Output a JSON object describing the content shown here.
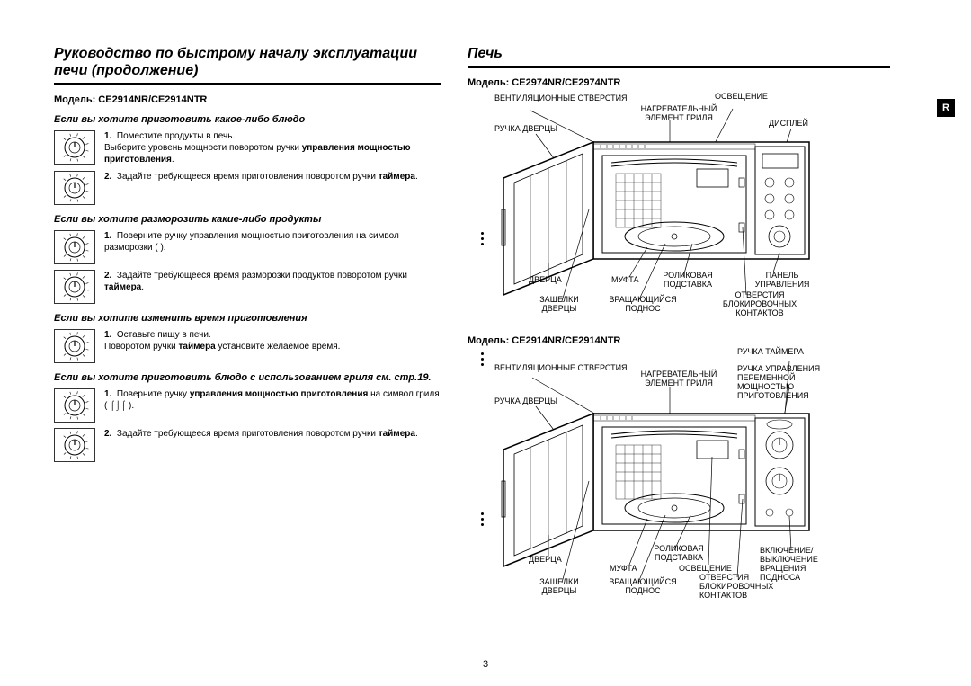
{
  "page_number": "3",
  "r_tab": "R",
  "left": {
    "heading": "Руководство по быстрому началу эксплуатации печи (продолжение)",
    "model": "Модель: CE2914NR/CE2914NTR",
    "sections": [
      {
        "title": "Если вы хотите приготовить какое-либо блюдо",
        "steps": [
          {
            "n": "1.",
            "text_before": "Поместите продукты в печь.\nВыберите уровень мощности поворотом ручки ",
            "bold": "управления мощностью приготовления",
            "text_after": "."
          },
          {
            "n": "2.",
            "text_before": "Задайте требующееся время приготовления поворотом ручки ",
            "bold": "таймера",
            "text_after": "."
          }
        ]
      },
      {
        "title": "Если вы хотите разморозить какие-либо продукты",
        "steps": [
          {
            "n": "1.",
            "text_before": "Поверните ручку управления мощностью приготовления на символ разморозки ( ",
            "bold": "",
            "text_after": " )."
          },
          {
            "n": "2.",
            "text_before": "Задайте требующееся время разморозки продуктов поворотом ручки ",
            "bold": "таймера",
            "text_after": "."
          }
        ]
      },
      {
        "title": "Если вы хотите изменить время приготовления",
        "steps": [
          {
            "n": "1.",
            "text_before": "Оставьте пищу в печи.\nПоворотом ручки ",
            "bold": "таймера",
            "text_after": " установите желаемое время."
          }
        ]
      },
      {
        "title": "Если вы хотите приготовить блюдо с использованием гриля см. стр.19.",
        "steps": [
          {
            "n": "1.",
            "text_before": "Поверните ручку ",
            "bold": "управления мощностью приготовления",
            "text_after": " на символ гриля ( ⌠⌡⌠ )."
          },
          {
            "n": "2.",
            "text_before": "Задайте требующееся время приготовления поворотом ручки ",
            "bold": "таймера",
            "text_after": "."
          }
        ]
      }
    ]
  },
  "right": {
    "heading": "Печь",
    "model1": "Модель: CE2974NR/CE2974NTR",
    "model2": "Модель: CE2914NR/CE2914NTR",
    "labels1": {
      "vent": "ВЕНТИЛЯЦИОННЫЕ ОТВЕРСТИЯ",
      "handle": "РУЧКА ДВЕРЦЫ",
      "light": "ОСВЕЩЕНИЕ",
      "grill": "НАГРЕВАТЕЛЬНЫЙ ЭЛЕМЕНТ ГРИЛЯ",
      "display": "ДИСПЛЕЙ",
      "door": "ДВЕРЦА",
      "coupler": "МУФТА",
      "roller": "РОЛИКОВАЯ ПОДСТАВКА",
      "panel": "ПАНЕЛЬ УПРАВЛЕНИЯ",
      "latches": "ЗАЩЕЛКИ ДВЕРЦЫ",
      "turntable": "ВРАЩАЮЩИЙСЯ ПОДНОС",
      "interlock": "ОТВЕРСТИЯ БЛОКИРОВОЧНЫХ КОНТАКТОВ"
    },
    "labels2": {
      "vent": "ВЕНТИЛЯЦИОННЫЕ ОТВЕРСТИЯ",
      "handle": "РУЧКА ДВЕРЦЫ",
      "grill": "НАГРЕВАТЕЛЬНЫЙ ЭЛЕМЕНТ ГРИЛЯ",
      "timer": "РУЧКА ТАЙМЕРА",
      "power": "РУЧКА УПРАВЛЕНИЯ ПЕРЕМЕННОЙ МОЩНОСТЬЮ ПРИГОТОВЛЕНИЯ",
      "door": "ДВЕРЦА",
      "coupler": "МУФТА",
      "roller": "РОЛИКОВАЯ ПОДСТАВКА",
      "light": "ОСВЕЩЕНИЕ",
      "onoff": "ВКЛЮЧЕНИЕ/ ВЫКЛЮЧЕНИЕ ВРАЩЕНИЯ ПОДНОСА",
      "latches": "ЗАЩЕЛКИ ДВЕРЦЫ",
      "turntable": "ВРАЩАЮЩИЙСЯ ПОДНОС",
      "interlock": "ОТВЕРСТИЯ БЛОКИРОВОЧНЫХ КОНТАКТОВ"
    }
  }
}
